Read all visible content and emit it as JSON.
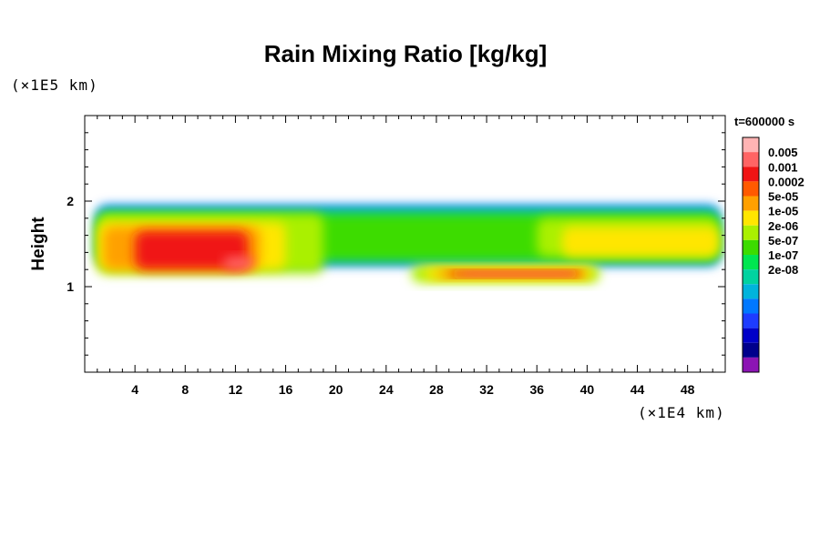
{
  "chart_data": {
    "type": "heatmap",
    "title": "Rain Mixing Ratio [kg/kg]",
    "xlabel": "",
    "ylabel": "Height",
    "x_scale_note": "(×1E4 km)",
    "y_scale_note": "(×1E5 km)",
    "xlim": [
      0,
      51
    ],
    "ylim": [
      0,
      3
    ],
    "x_ticks": [
      4,
      8,
      12,
      16,
      20,
      24,
      28,
      32,
      36,
      40,
      44,
      48
    ],
    "y_ticks": [
      1,
      2
    ],
    "time_label": "t=600000 s",
    "colorbar": {
      "labels": [
        "0.005",
        "0.001",
        "0.0002",
        "5e-05",
        "1e-05",
        "2e-06",
        "5e-07",
        "1e-07",
        "2e-08"
      ],
      "colors_top_to_bottom": [
        "#ffb4b4",
        "#ff6464",
        "#f01414",
        "#ff5a00",
        "#ffa000",
        "#ffe600",
        "#aaf000",
        "#3cdc00",
        "#00e650",
        "#00d2a0",
        "#00b4dc",
        "#0078ff",
        "#1e3cff",
        "#0000c8",
        "#00008c",
        "#8c14b4"
      ]
    },
    "regions": [
      {
        "level": 0,
        "x": [
          1.0,
          50.5
        ],
        "y": [
          1.25,
          1.95
        ]
      },
      {
        "level": 1,
        "x": [
          1.0,
          50.5
        ],
        "y": [
          1.3,
          1.9
        ]
      },
      {
        "level": 2,
        "x": [
          1.0,
          50.5
        ],
        "y": [
          1.3,
          1.85
        ]
      },
      {
        "level": 3,
        "x": [
          1.0,
          19.0
        ],
        "y": [
          1.15,
          1.85
        ]
      },
      {
        "level": 3,
        "x": [
          26.0,
          41.0
        ],
        "y": [
          1.05,
          1.25
        ]
      },
      {
        "level": 3,
        "x": [
          36.0,
          50.5
        ],
        "y": [
          1.35,
          1.8
        ]
      },
      {
        "level": 4,
        "x": [
          1.0,
          16.0
        ],
        "y": [
          1.2,
          1.75
        ]
      },
      {
        "level": 4,
        "x": [
          27.0,
          40.5
        ],
        "y": [
          1.08,
          1.22
        ]
      },
      {
        "level": 4,
        "x": [
          38.0,
          50.5
        ],
        "y": [
          1.35,
          1.7
        ]
      },
      {
        "level": 5,
        "x": [
          1.5,
          14.0
        ],
        "y": [
          1.2,
          1.7
        ]
      },
      {
        "level": 5,
        "x": [
          28.0,
          40.0
        ],
        "y": [
          1.1,
          1.2
        ]
      },
      {
        "level": 6,
        "x": [
          4.0,
          13.0
        ],
        "y": [
          1.2,
          1.65
        ]
      },
      {
        "level": 6,
        "x": [
          29.0,
          39.5
        ],
        "y": [
          1.12,
          1.18
        ]
      },
      {
        "level": 7,
        "x": [
          11.0,
          13.5
        ],
        "y": [
          1.2,
          1.35
        ]
      },
      {
        "level": 7,
        "x": [
          30.0,
          39.0
        ],
        "y": [
          1.13,
          1.17
        ]
      }
    ]
  }
}
